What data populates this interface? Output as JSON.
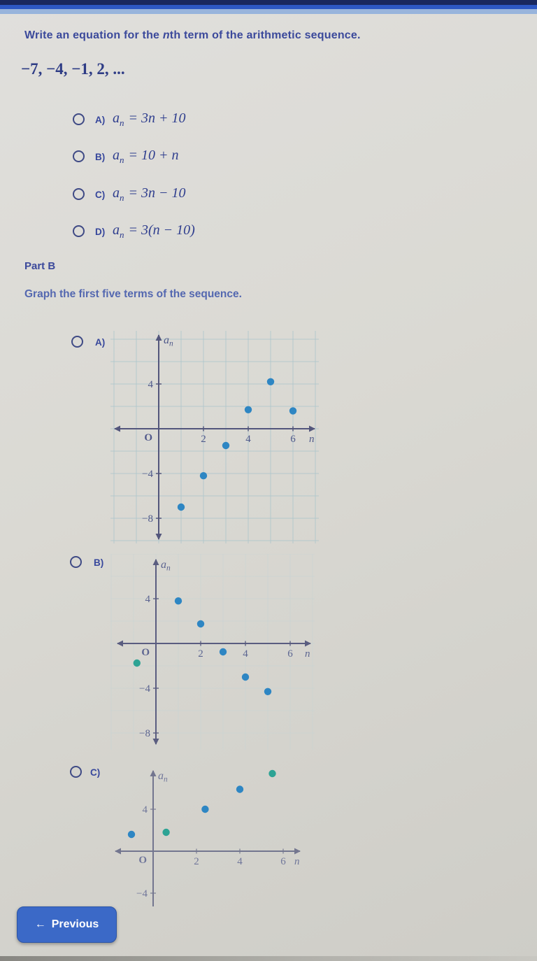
{
  "colors": {
    "dot_blue": "#2e86c3",
    "dot_teal": "#2da394",
    "axis": "#53567c",
    "grid": "#aec6cb",
    "grid_faint": "#c6d3d4",
    "tick_label": "#4f588a",
    "text_navy": "#3b499b",
    "math_navy": "#2f3e8e",
    "instruction_blue": "#5468b0",
    "button_blue": "#3b69c7",
    "top_bar_dark": "#19285f",
    "top_bar_mid": "#2d58c4",
    "top_bar_light": "#98b4dc",
    "background": "#d9d8d2"
  },
  "question": {
    "prompt_before": "Write an equation for the ",
    "prompt_italic": "n",
    "prompt_after": "th term of the arithmetic sequence.",
    "sequence": "−7, −4, −1, 2, ...",
    "options": [
      {
        "letter": "A)",
        "lhs_base": "a",
        "lhs_sub": "n",
        "rhs": "= 3n + 10"
      },
      {
        "letter": "B)",
        "lhs_base": "a",
        "lhs_sub": "n",
        "rhs": "= 10 + n"
      },
      {
        "letter": "C)",
        "lhs_base": "a",
        "lhs_sub": "n",
        "rhs": "= 3n − 10"
      },
      {
        "letter": "D)",
        "lhs_base": "a",
        "lhs_sub": "n",
        "rhs": "= 3(n − 10)"
      }
    ]
  },
  "part_b": {
    "heading": "Part B",
    "instruction": "Graph the first five terms of the sequence."
  },
  "chart_data": [
    {
      "type": "scatter",
      "option_letter": "A)",
      "xlabel": "n",
      "ylabel": "a_n",
      "x_ticks": [
        2,
        4,
        6
      ],
      "y_ticks": [
        4,
        -4,
        -8
      ],
      "xlim": [
        -2.1,
        7.1
      ],
      "ylim": [
        -10.2,
        8.7
      ],
      "grid": "full",
      "origin_label": "O",
      "points": [
        [
          1,
          -7
        ],
        [
          2,
          -4.2
        ],
        [
          3,
          -1.5
        ],
        [
          4,
          1.7
        ],
        [
          5,
          4.2
        ],
        [
          6,
          1.6
        ]
      ]
    },
    {
      "type": "scatter",
      "option_letter": "B)",
      "xlabel": "n",
      "ylabel": "a_n",
      "x_ticks": [
        2,
        4,
        6
      ],
      "y_ticks": [
        4,
        -4,
        -8
      ],
      "xlim": [
        -2,
        7.1
      ],
      "ylim": [
        -9.5,
        8
      ],
      "grid": "faint",
      "origin_label": "O",
      "points": [
        [
          -0.85,
          -1.75,
          "teal"
        ],
        [
          1,
          3.8
        ],
        [
          2,
          1.75
        ],
        [
          3,
          -0.75
        ],
        [
          4,
          -3
        ],
        [
          5,
          -4.3
        ]
      ]
    },
    {
      "type": "scatter",
      "option_letter": "C)",
      "xlabel": "n",
      "ylabel": "a_n",
      "x_ticks": [
        2,
        4,
        6
      ],
      "y_ticks": [
        4,
        -4
      ],
      "xlim": [
        -2.1,
        7.4
      ],
      "ylim": [
        -5.3,
        8.2
      ],
      "grid": "none",
      "origin_label": "O",
      "points": [
        [
          -1,
          1.6
        ],
        [
          0.6,
          1.8,
          "teal"
        ],
        [
          2.4,
          4
        ],
        [
          4,
          5.9
        ],
        [
          5.5,
          7.4,
          "teal"
        ]
      ]
    }
  ],
  "footer": {
    "previous_icon": "←",
    "previous_label": "Previous"
  }
}
